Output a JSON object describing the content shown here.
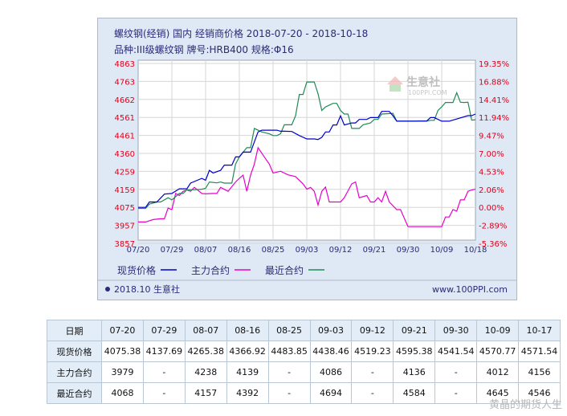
{
  "chart_data": {
    "type": "line",
    "title": "螺纹钢(经销) 国内 经销商价格 2018-07-20 - 2018-10-18",
    "subtitle": "品种:III级螺纹钢 牌号:HRB400 规格:Φ16",
    "x_tick_labels": [
      "07/20",
      "07/29",
      "08/07",
      "08/16",
      "08/25",
      "09/03",
      "09/12",
      "09/21",
      "09/30",
      "10/09",
      "10/18"
    ],
    "x_range": [
      0,
      90
    ],
    "y_left_ticks": [
      "4863",
      "4763",
      "4662",
      "4561",
      "4461",
      "4360",
      "4259",
      "4159",
      "4075",
      "3957",
      "3857"
    ],
    "y_left_range": [
      3830,
      4900
    ],
    "y_right_ticks": [
      "19.35%",
      "16.88%",
      "14.41%",
      "11.94%",
      "9.47%",
      "7.00%",
      "4.53%",
      "2.06%",
      "0.00%",
      "-2.89%",
      "-5.36%"
    ],
    "legend": [
      "现货价格",
      "主力合约",
      "最近合约"
    ],
    "legend_placement": "bottom",
    "footer_left": "2018.10 生意社",
    "footer_right": "www.100PPI.com",
    "logo_text": "生意社",
    "logo_url": "100PPI.COM",
    "colors": {
      "spot": "#0000cc",
      "main": "#e600cc",
      "recent": "#1f8a55",
      "panel": "#dfe9f5",
      "plot": "#ffffff"
    },
    "series": [
      {
        "name": "现货价格",
        "color": "#0000cc",
        "x": [
          0,
          2,
          3,
          5,
          7,
          9,
          11,
          13,
          14,
          17,
          18,
          19,
          20,
          22,
          23,
          25,
          26,
          27,
          28,
          29,
          30,
          32,
          33,
          37,
          38,
          39,
          41,
          43,
          45,
          47,
          48,
          49,
          50,
          51,
          52,
          53,
          54,
          55,
          57,
          58,
          59,
          61,
          62,
          63,
          64,
          65,
          67,
          68,
          69,
          74,
          75,
          77,
          78,
          79,
          81,
          82,
          83,
          88,
          89,
          90
        ],
        "y": [
          4075,
          4075,
          4100,
          4100,
          4137,
          4140,
          4162,
          4162,
          4194,
          4220,
          4210,
          4265,
          4250,
          4265,
          4294,
          4294,
          4340,
          4340,
          4367,
          4367,
          4367,
          4480,
          4490,
          4490,
          4484,
          4484,
          4483,
          4460,
          4441,
          4441,
          4438,
          4450,
          4480,
          4480,
          4519,
          4519,
          4570,
          4519,
          4530,
          4530,
          4550,
          4550,
          4560,
          4560,
          4560,
          4595,
          4595,
          4570,
          4540,
          4540,
          4541,
          4541,
          4560,
          4560,
          4540,
          4540,
          4540,
          4571,
          4571,
          4580
        ]
      },
      {
        "name": "主力合约",
        "color": "#e600cc",
        "x": [
          0,
          2,
          4,
          6,
          7,
          8,
          9,
          10,
          11,
          12,
          13,
          14,
          15,
          17,
          18,
          20,
          21,
          22,
          24,
          26,
          27,
          28,
          29,
          30,
          31,
          32,
          34,
          35,
          36,
          38,
          40,
          42,
          44,
          45,
          46,
          47,
          48,
          49,
          50,
          51,
          52,
          54,
          55,
          57,
          58,
          59,
          61,
          62,
          63,
          64,
          65,
          66,
          67,
          69,
          70,
          72,
          75,
          76,
          78,
          79,
          81,
          82,
          83,
          84,
          85,
          86,
          87,
          88,
          89,
          90
        ],
        "y": [
          3979,
          3979,
          3995,
          4000,
          4000,
          4070,
          4060,
          4140,
          4130,
          4150,
          4156,
          4150,
          4170,
          4140,
          4138,
          4140,
          4140,
          4170,
          4150,
          4200,
          4220,
          4238,
          4150,
          4239,
          4300,
          4392,
          4330,
          4300,
          4250,
          4260,
          4240,
          4230,
          4190,
          4160,
          4170,
          4150,
          4086,
          4150,
          4172,
          4100,
          4100,
          4100,
          4120,
          4190,
          4200,
          4120,
          4130,
          4100,
          4100,
          4120,
          4100,
          4150,
          4100,
          4060,
          4060,
          3950,
          3950,
          3950,
          3950,
          3950,
          3950,
          4012,
          4012,
          4060,
          4050,
          4110,
          4110,
          4150,
          4156,
          4160
        ]
      },
      {
        "name": "最近合约",
        "color": "#1f8a55",
        "x": [
          0,
          2,
          3,
          5,
          6,
          8,
          9,
          11,
          12,
          13,
          15,
          17,
          18,
          19,
          21,
          22,
          23,
          25,
          26,
          27,
          29,
          30,
          31,
          33,
          35,
          36,
          37,
          38,
          39,
          41,
          42,
          43,
          44,
          45,
          46,
          47,
          48,
          49,
          50,
          51,
          52,
          53,
          54,
          55,
          56,
          57,
          59,
          60,
          62,
          63,
          64,
          65,
          68,
          69,
          73,
          75,
          77,
          78,
          79,
          80,
          81,
          82,
          84,
          85,
          86,
          87,
          88,
          89,
          90
        ],
        "y": [
          4068,
          4068,
          4090,
          4100,
          4100,
          4120,
          4110,
          4140,
          4140,
          4157,
          4157,
          4160,
          4165,
          4200,
          4195,
          4200,
          4194,
          4194,
          4300,
          4340,
          4392,
          4392,
          4500,
          4480,
          4470,
          4460,
          4460,
          4470,
          4520,
          4520,
          4570,
          4690,
          4690,
          4760,
          4760,
          4760,
          4694,
          4600,
          4620,
          4630,
          4640,
          4640,
          4600,
          4580,
          4580,
          4500,
          4500,
          4520,
          4530,
          4550,
          4550,
          4580,
          4584,
          4540,
          4540,
          4540,
          4540,
          4545,
          4545,
          4600,
          4620,
          4645,
          4645,
          4700,
          4646,
          4645,
          4646,
          4546,
          4548
        ]
      }
    ]
  },
  "table": {
    "header": [
      "日期",
      "07-20",
      "07-29",
      "08-07",
      "08-16",
      "08-25",
      "09-03",
      "09-12",
      "09-21",
      "09-30",
      "10-09",
      "10-17"
    ],
    "rows": [
      [
        "现货价格",
        "4075.38",
        "4137.69",
        "4265.38",
        "4366.92",
        "4483.85",
        "4438.46",
        "4519.23",
        "4595.38",
        "4541.54",
        "4570.77",
        "4571.54"
      ],
      [
        "主力合约",
        "3979",
        "-",
        "4238",
        "4139",
        "-",
        "4086",
        "-",
        "4136",
        "-",
        "4012",
        "4156"
      ],
      [
        "最近合约",
        "4068",
        "-",
        "4157",
        "4392",
        "-",
        "4694",
        "-",
        "4584",
        "-",
        "4645",
        "4546"
      ]
    ]
  },
  "watermark": "黄晶的期货人生"
}
